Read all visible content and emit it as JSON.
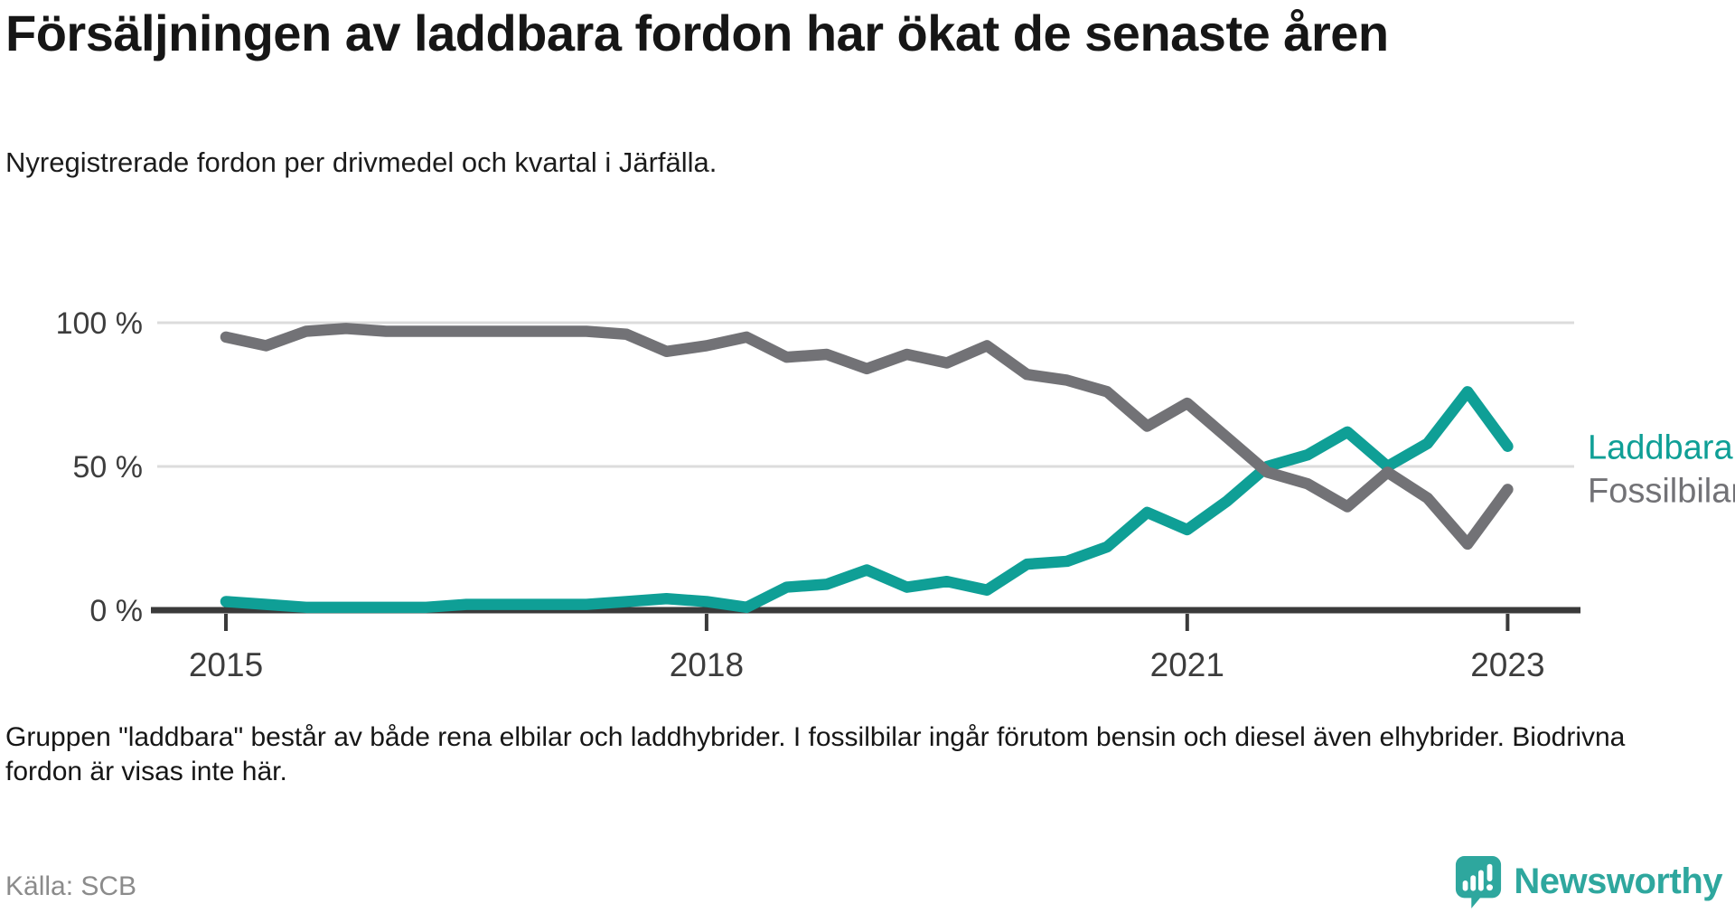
{
  "header": {
    "title": "Försäljningen av laddbara fordon har ökat de senaste åren",
    "subtitle": "Nyregistrerade fordon per drivmedel och kvartal i Järfälla."
  },
  "chart_data": {
    "type": "line",
    "title": "Försäljningen av laddbara fordon har ökat de senaste åren",
    "xlabel": "",
    "ylabel": "",
    "unit": "%",
    "x_quarters": [
      "2015 K1",
      "2015 K2",
      "2015 K3",
      "2015 K4",
      "2016 K1",
      "2016 K2",
      "2016 K3",
      "2016 K4",
      "2017 K1",
      "2017 K2",
      "2017 K3",
      "2017 K4",
      "2018 K1",
      "2018 K2",
      "2018 K3",
      "2018 K4",
      "2019 K1",
      "2019 K2",
      "2019 K3",
      "2019 K4",
      "2020 K1",
      "2020 K2",
      "2020 K3",
      "2020 K4",
      "2021 K1",
      "2021 K2",
      "2021 K3",
      "2021 K4",
      "2022 K1",
      "2022 K2",
      "2022 K3",
      "2022 K4",
      "2023 K1"
    ],
    "series": [
      {
        "name": "Laddbara",
        "color": "#0f9f96",
        "values": [
          3,
          2,
          1,
          1,
          1,
          1,
          2,
          2,
          2,
          2,
          3,
          4,
          3,
          1,
          8,
          9,
          14,
          8,
          10,
          7,
          16,
          17,
          22,
          34,
          28,
          38,
          50,
          54,
          62,
          50,
          58,
          76,
          57
        ]
      },
      {
        "name": "Fossilbilar",
        "color": "#727276",
        "values": [
          95,
          92,
          97,
          98,
          97,
          97,
          97,
          97,
          97,
          97,
          96,
          90,
          92,
          95,
          88,
          89,
          84,
          89,
          86,
          92,
          82,
          80,
          76,
          64,
          72,
          60,
          48,
          44,
          36,
          48,
          39,
          23,
          42
        ]
      }
    ],
    "ylim": [
      0,
      100
    ],
    "yticks": [
      {
        "value": 0,
        "label": "0 %"
      },
      {
        "value": 50,
        "label": "50 %"
      },
      {
        "value": 100,
        "label": "100 %"
      }
    ],
    "xticks": [
      {
        "value": 2015,
        "label": "2015"
      },
      {
        "value": 2018,
        "label": "2018"
      },
      {
        "value": 2021,
        "label": "2021"
      },
      {
        "value": 2023,
        "label": "2023"
      }
    ],
    "grid": "horizontal gridlines at 50 and 100, dark baseline at 0",
    "legend": "direct labels at right end of lines"
  },
  "footnote": "Gruppen \"laddbara\" består av både rena elbilar och laddhybrider. I fossilbilar ingår förutom bensin och diesel även elhybrider. Biodrivna fordon är visas inte här.",
  "source": "Källa: SCB",
  "logo": {
    "text": "Newsworthy",
    "color": "#2ea79e"
  },
  "colors": {
    "accent_teal": "#0f9f96",
    "neutral_gray": "#727276",
    "gridline": "#dcdcdc",
    "axis": "#3a3a3a",
    "tick_text": "#3d3d3d"
  }
}
